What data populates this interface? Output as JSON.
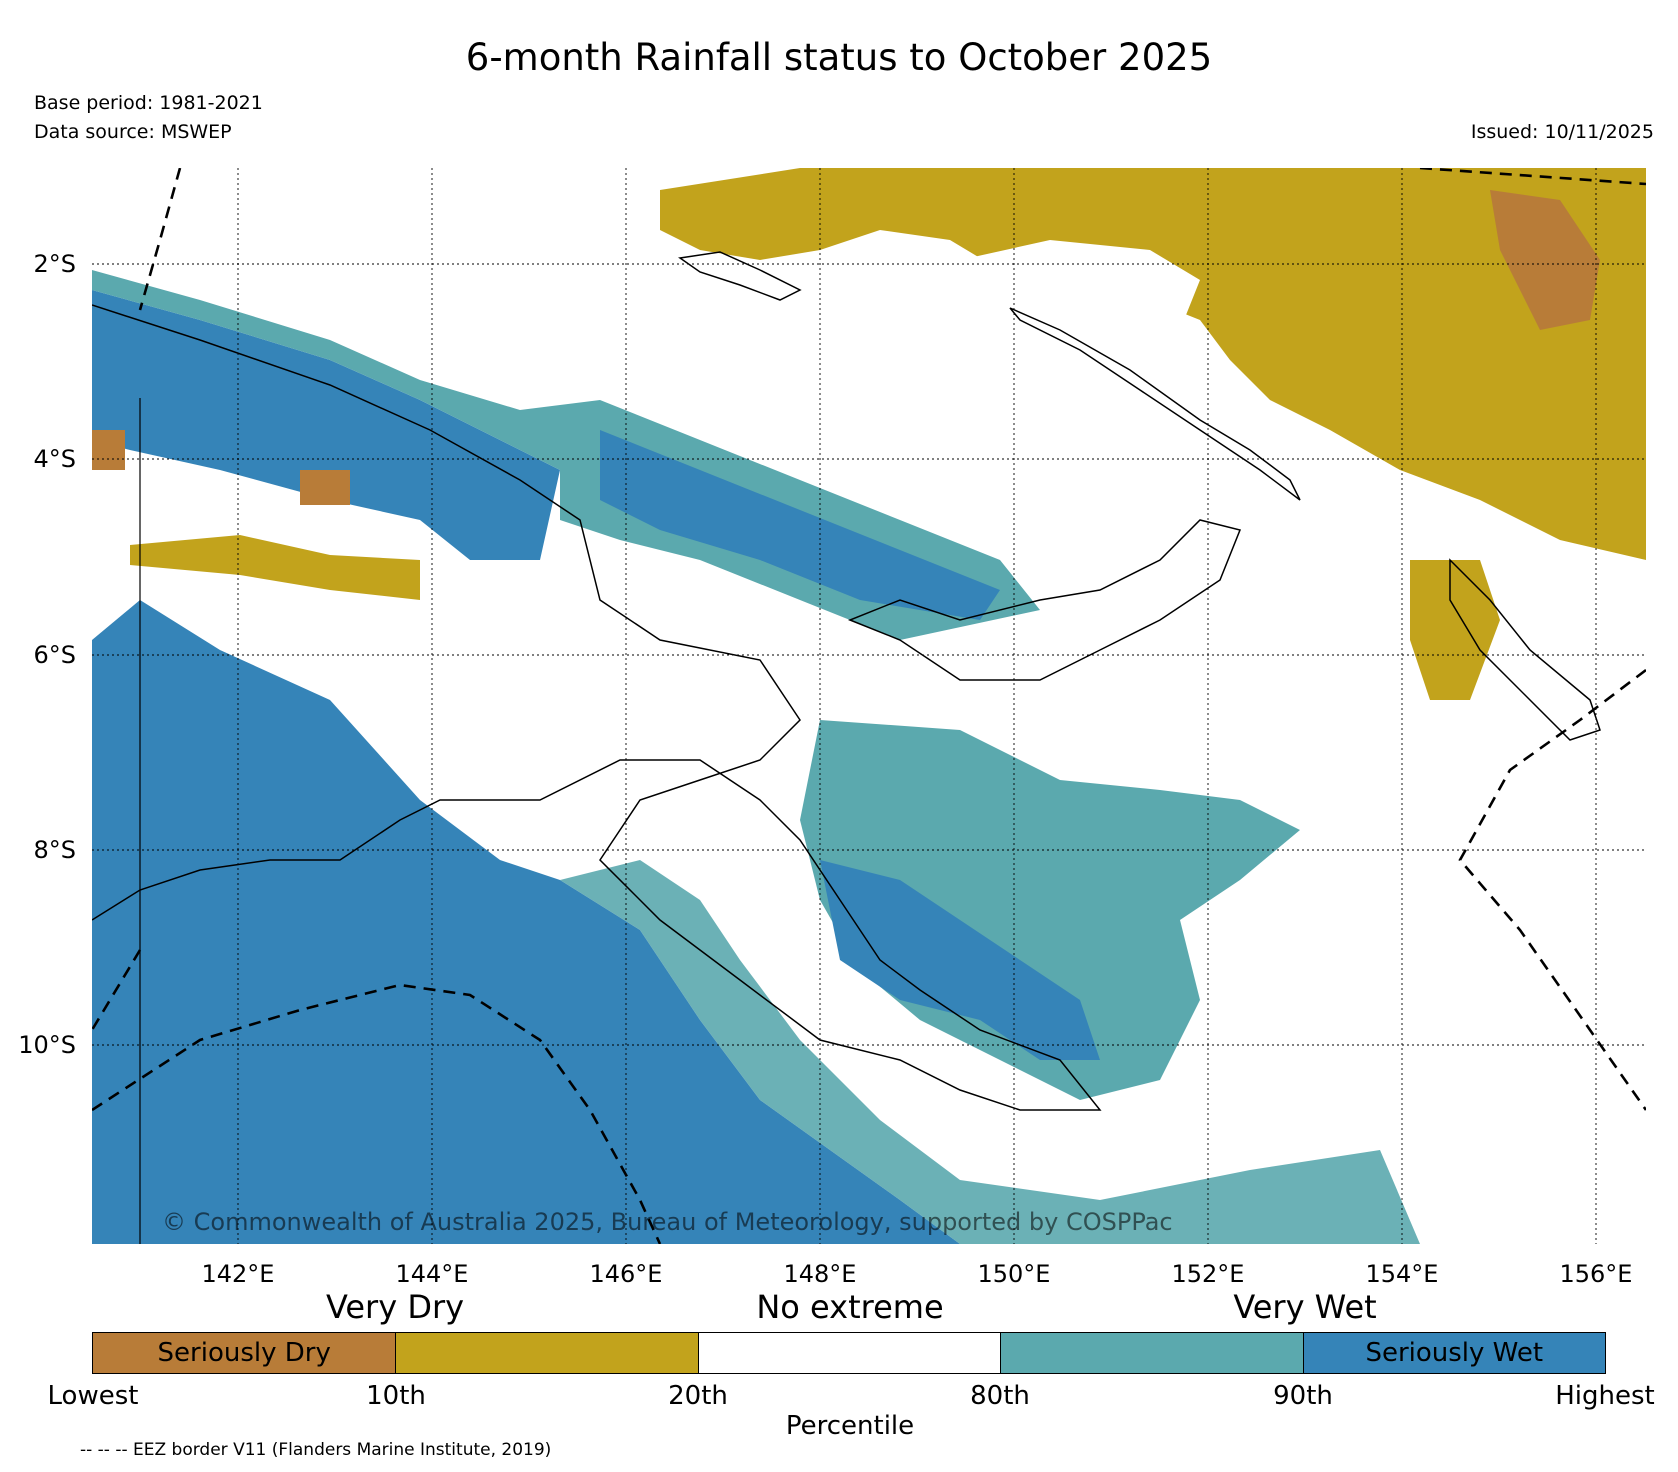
{
  "title": "6-month Rainfall status to October 2025",
  "base_period": "Base period: 1981-2021",
  "data_source": "Data source: MSWEP",
  "issued": "Issued: 10/11/2025",
  "copyright": "© Commonwealth of Australia 2025, Bureau of Meteorology, supported by COSPPac",
  "map": {
    "lat_ticks": [
      "2°S",
      "4°S",
      "6°S",
      "8°S",
      "10°S"
    ],
    "lon_ticks": [
      "142°E",
      "144°E",
      "146°E",
      "148°E",
      "150°E",
      "152°E",
      "154°E",
      "156°E"
    ],
    "extent": {
      "lon_min": 140.5,
      "lon_max": 156.5,
      "lat_min": -11.75,
      "lat_max": -0.75
    }
  },
  "legend": {
    "category_labels": [
      "Very Dry",
      "No extreme",
      "Very Wet"
    ],
    "segments": [
      {
        "label": "Seriously Dry",
        "color": "#b87c38"
      },
      {
        "label": "",
        "color": "#c2a31c"
      },
      {
        "label": "",
        "color": "#ffffff"
      },
      {
        "label": "",
        "color": "#5ba9ae"
      },
      {
        "label": "Seriously Wet",
        "color": "#3584b8"
      }
    ],
    "percentile_ticks": [
      "Lowest",
      "10th",
      "20th",
      "80th",
      "90th",
      "Highest"
    ],
    "axis_label": "Percentile"
  },
  "eez_note": "-- -- -- EEZ border V11 (Flanders Marine Institute, 2019)"
}
